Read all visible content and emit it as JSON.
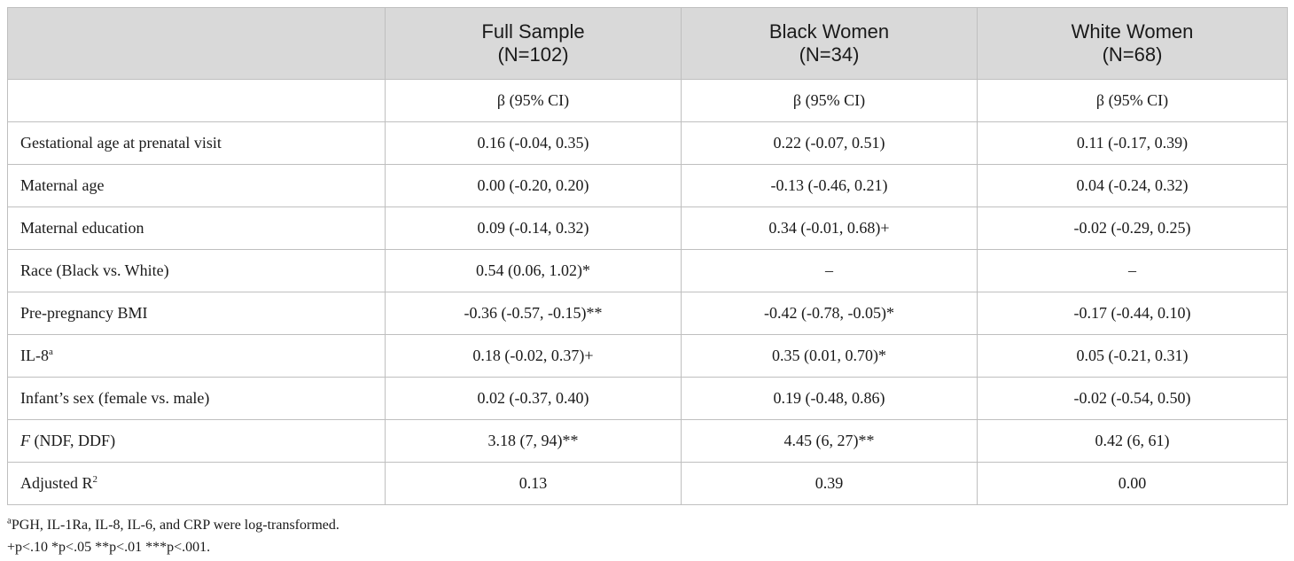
{
  "table": {
    "columns": [
      {
        "line1": "",
        "line2": ""
      },
      {
        "line1": "Full Sample",
        "line2": "(N=102)"
      },
      {
        "line1": "Black Women",
        "line2": "(N=34)"
      },
      {
        "line1": "White Women",
        "line2": "(N=68)"
      }
    ],
    "stat_row": {
      "label": "",
      "cells": [
        "β (95% CI)",
        "β (95% CI)",
        "β (95% CI)"
      ]
    },
    "rows": [
      {
        "label": "Gestational age at prenatal visit",
        "label_sup": "",
        "cells": [
          "0.16 (-0.04, 0.35)",
          "0.22 (-0.07, 0.51)",
          "0.11 (-0.17, 0.39)"
        ]
      },
      {
        "label": "Maternal age",
        "label_sup": "",
        "cells": [
          "0.00 (-0.20, 0.20)",
          "-0.13 (-0.46, 0.21)",
          "0.04 (-0.24, 0.32)"
        ]
      },
      {
        "label": "Maternal education",
        "label_sup": "",
        "cells": [
          "0.09 (-0.14, 0.32)",
          "0.34 (-0.01, 0.68)+",
          "-0.02 (-0.29, 0.25)"
        ]
      },
      {
        "label": "Race (Black vs. White)",
        "label_sup": "",
        "cells": [
          "0.54 (0.06, 1.02)*",
          "–",
          "–"
        ]
      },
      {
        "label": "Pre-pregnancy BMI",
        "label_sup": "",
        "cells": [
          "-0.36 (-0.57, -0.15)**",
          "-0.42 (-0.78, -0.05)*",
          "-0.17 (-0.44, 0.10)"
        ]
      },
      {
        "label": "IL-8",
        "label_sup": "a",
        "cells": [
          "0.18 (-0.02, 0.37)+",
          "0.35 (0.01, 0.70)*",
          "0.05 (-0.21, 0.31)"
        ]
      },
      {
        "label": "Infant’s sex (female vs. male)",
        "label_sup": "",
        "cells": [
          "0.02 (-0.37, 0.40)",
          "0.19 (-0.48, 0.86)",
          "-0.02 (-0.54, 0.50)"
        ]
      }
    ],
    "f_row": {
      "label_italic": "F",
      "label_rest": " (NDF, DDF)",
      "cells": [
        "3.18 (7, 94)**",
        "4.45 (6, 27)**",
        "0.42 (6, 61)"
      ]
    },
    "r2_row": {
      "label": "Adjusted R",
      "label_sup": "2",
      "cells": [
        "0.13",
        "0.39",
        "0.00"
      ]
    }
  },
  "footnotes": {
    "note_a_mark": "a",
    "note_a_text": "PGH, IL-1Ra, IL-8, IL-6, and CRP were log-transformed.",
    "significance": "+p<.10 *p<.05 **p<.01 ***p<.001."
  }
}
